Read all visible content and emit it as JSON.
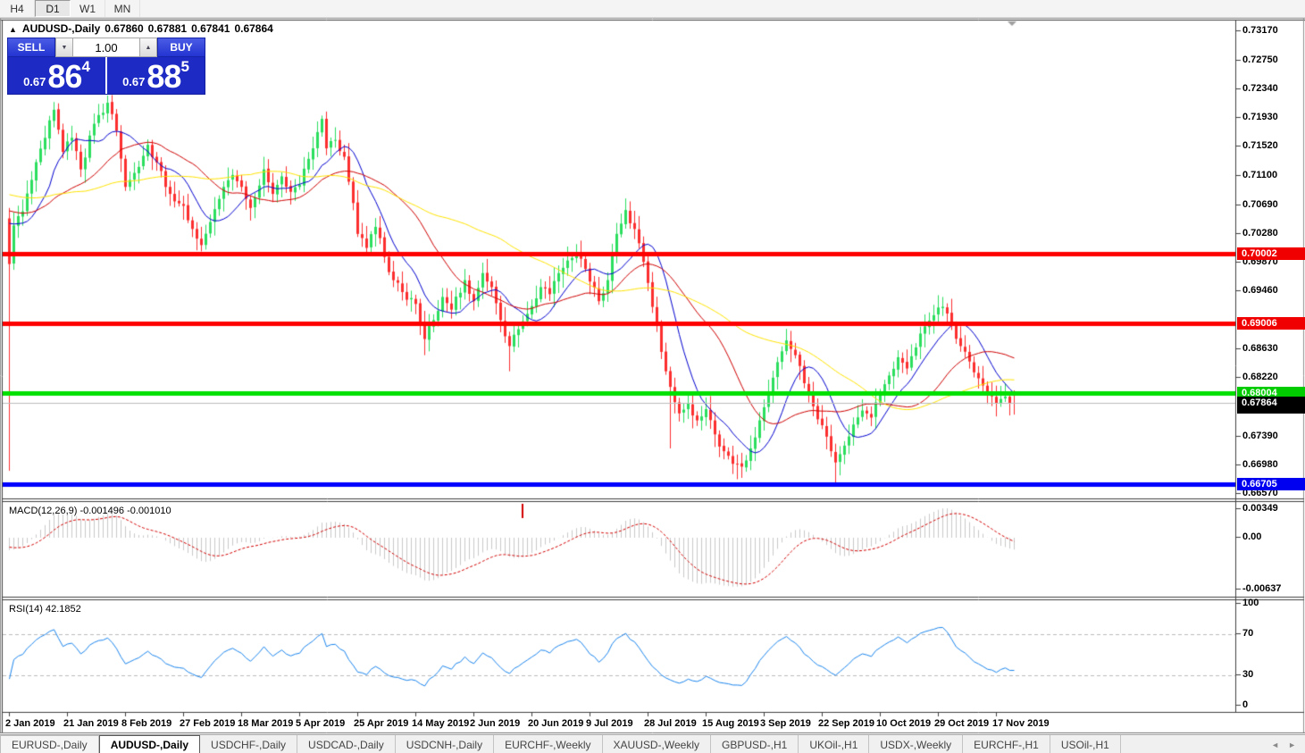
{
  "toolbar": {
    "timeframes": [
      {
        "label": "H4",
        "active": false
      },
      {
        "label": "D1",
        "active": true
      },
      {
        "label": "W1",
        "active": false
      },
      {
        "label": "MN",
        "active": false
      }
    ]
  },
  "header": {
    "symbol": "AUDUSD-,Daily",
    "open": "0.67860",
    "high": "0.67881",
    "low": "0.67841",
    "close": "0.67864"
  },
  "trade_panel": {
    "sell_label": "SELL",
    "buy_label": "BUY",
    "volume": "1.00",
    "sell_price": {
      "prefix": "0.67",
      "big": "86",
      "pip": "4"
    },
    "buy_price": {
      "prefix": "0.67",
      "big": "88",
      "pip": "5"
    }
  },
  "indicators": {
    "macd": {
      "display": "MACD(12,26,9) -0.001496 -0.001010"
    },
    "rsi": {
      "display": "RSI(14) 42.1852"
    }
  },
  "tabs": {
    "scroll_left": "◄",
    "scroll_right": "►",
    "items": [
      {
        "label": "EURUSD-,Daily",
        "active": false
      },
      {
        "label": "AUDUSD-,Daily",
        "active": true
      },
      {
        "label": "USDCHF-,Daily",
        "active": false
      },
      {
        "label": "USDCAD-,Daily",
        "active": false
      },
      {
        "label": "USDCNH-,Daily",
        "active": false
      },
      {
        "label": "EURCHF-,Weekly",
        "active": false
      },
      {
        "label": "XAUUSD-,Weekly",
        "active": false
      },
      {
        "label": "GBPUSD-,H1",
        "active": false
      },
      {
        "label": "UKOil-,H1",
        "active": false
      },
      {
        "label": "USDX-,Weekly",
        "active": false
      },
      {
        "label": "EURCHF-,H1",
        "active": false
      },
      {
        "label": "USOil-,H1",
        "active": false
      }
    ]
  },
  "chart_data": {
    "type": "candlestick",
    "symbol": "AUDUSD",
    "timeframe": "Daily",
    "days": 226,
    "candle_up": "#2BDE5E",
    "candle_down": "#FC2E2E",
    "y_ticks": [
      "0.73170",
      "0.72750",
      "0.72340",
      "0.71930",
      "0.71520",
      "0.71100",
      "0.70690",
      "0.70280",
      "0.69870",
      "0.69460",
      "0.68630",
      "0.68220",
      "0.67390",
      "0.66980",
      "0.66570"
    ],
    "x_labels": [
      {
        "text": "2 Jan 2019",
        "day": 0
      },
      {
        "text": "21 Jan 2019",
        "day": 13
      },
      {
        "text": "8 Feb 2019",
        "day": 26
      },
      {
        "text": "27 Feb 2019",
        "day": 39
      },
      {
        "text": "18 Mar 2019",
        "day": 52
      },
      {
        "text": "5 Apr 2019",
        "day": 65
      },
      {
        "text": "25 Apr 2019",
        "day": 78
      },
      {
        "text": "14 May 2019",
        "day": 91
      },
      {
        "text": "2 Jun 2019",
        "day": 104
      },
      {
        "text": "20 Jun 2019",
        "day": 117
      },
      {
        "text": "9 Jul 2019",
        "day": 130
      },
      {
        "text": "28 Jul 2019",
        "day": 143
      },
      {
        "text": "15 Aug 2019",
        "day": 156
      },
      {
        "text": "3 Sep 2019",
        "day": 169
      },
      {
        "text": "22 Sep 2019",
        "day": 182
      },
      {
        "text": "10 Oct 2019",
        "day": 195
      },
      {
        "text": "29 Oct 2019",
        "day": 208
      },
      {
        "text": "17 Nov 2019",
        "day": 221
      }
    ],
    "hlines": [
      {
        "price": 0.70002,
        "label": "0.70002",
        "line_color": "#FF0000",
        "width": 5,
        "tag_color": "#F00000"
      },
      {
        "price": 0.69006,
        "label": "0.69006",
        "line_color": "#FF0000",
        "width": 5,
        "tag_color": "#F00000"
      },
      {
        "price": 0.68004,
        "label": "0.68004",
        "line_color": "#00E000",
        "width": 5,
        "tag_color": "#00CC00"
      },
      {
        "price": 0.67864,
        "label": "0.67864",
        "line_color": "#BDBDBD",
        "width": 1,
        "tag_color": "#000000",
        "current": true
      },
      {
        "price": 0.66705,
        "label": "0.66705",
        "line_color": "#0000FF",
        "width": 5,
        "tag_color": "#0000F0"
      }
    ],
    "moving_averages": [
      {
        "period": 10,
        "color": "#0000D0"
      },
      {
        "period": 25,
        "color": "#D00000"
      },
      {
        "period": 55,
        "color": "#FFE400"
      }
    ],
    "anchors": [
      [
        0,
        0.6985
      ],
      [
        1,
        0.704
      ],
      [
        3,
        0.706
      ],
      [
        5,
        0.7105
      ],
      [
        8,
        0.7165
      ],
      [
        10,
        0.7205
      ],
      [
        12,
        0.7145
      ],
      [
        14,
        0.7165
      ],
      [
        16,
        0.712
      ],
      [
        19,
        0.7185
      ],
      [
        22,
        0.7215
      ],
      [
        24,
        0.7175
      ],
      [
        26,
        0.7095
      ],
      [
        28,
        0.7115
      ],
      [
        31,
        0.7155
      ],
      [
        33,
        0.713
      ],
      [
        36,
        0.7085
      ],
      [
        39,
        0.7068
      ],
      [
        41,
        0.7035
      ],
      [
        43,
        0.7012
      ],
      [
        45,
        0.7045
      ],
      [
        48,
        0.7095
      ],
      [
        50,
        0.7112
      ],
      [
        52,
        0.7095
      ],
      [
        54,
        0.7065
      ],
      [
        57,
        0.712
      ],
      [
        59,
        0.7085
      ],
      [
        61,
        0.711
      ],
      [
        63,
        0.7088
      ],
      [
        65,
        0.7098
      ],
      [
        67,
        0.7135
      ],
      [
        70,
        0.7192
      ],
      [
        71,
        0.715
      ],
      [
        73,
        0.7162
      ],
      [
        75,
        0.7138
      ],
      [
        77,
        0.7072
      ],
      [
        78,
        0.7028
      ],
      [
        80,
        0.7008
      ],
      [
        82,
        0.7038
      ],
      [
        84,
        0.6995
      ],
      [
        86,
        0.6962
      ],
      [
        88,
        0.6945
      ],
      [
        91,
        0.6928
      ],
      [
        93,
        0.6878
      ],
      [
        95,
        0.6905
      ],
      [
        97,
        0.6938
      ],
      [
        99,
        0.692
      ],
      [
        102,
        0.6962
      ],
      [
        104,
        0.6932
      ],
      [
        106,
        0.6972
      ],
      [
        108,
        0.6952
      ],
      [
        110,
        0.6905
      ],
      [
        112,
        0.6868
      ],
      [
        114,
        0.6892
      ],
      [
        117,
        0.6925
      ],
      [
        119,
        0.6952
      ],
      [
        121,
        0.6942
      ],
      [
        123,
        0.6972
      ],
      [
        125,
        0.699
      ],
      [
        127,
        0.7
      ],
      [
        129,
        0.6978
      ],
      [
        130,
        0.696
      ],
      [
        132,
        0.6932
      ],
      [
        134,
        0.6962
      ],
      [
        136,
        0.7028
      ],
      [
        138,
        0.7062
      ],
      [
        140,
        0.7035
      ],
      [
        142,
        0.6988
      ],
      [
        143,
        0.6958
      ],
      [
        145,
        0.6898
      ],
      [
        147,
        0.6832
      ],
      [
        149,
        0.6788
      ],
      [
        150,
        0.6772
      ],
      [
        152,
        0.6786
      ],
      [
        154,
        0.6762
      ],
      [
        156,
        0.6778
      ],
      [
        158,
        0.6742
      ],
      [
        160,
        0.6718
      ],
      [
        162,
        0.67
      ],
      [
        164,
        0.6696
      ],
      [
        166,
        0.6722
      ],
      [
        168,
        0.6762
      ],
      [
        170,
        0.6802
      ],
      [
        172,
        0.6845
      ],
      [
        174,
        0.6876
      ],
      [
        176,
        0.6855
      ],
      [
        178,
        0.6815
      ],
      [
        180,
        0.6782
      ],
      [
        182,
        0.6755
      ],
      [
        184,
        0.6718
      ],
      [
        185,
        0.6702
      ],
      [
        187,
        0.6726
      ],
      [
        189,
        0.6756
      ],
      [
        191,
        0.6776
      ],
      [
        193,
        0.6766
      ],
      [
        195,
        0.68
      ],
      [
        197,
        0.6826
      ],
      [
        199,
        0.6852
      ],
      [
        201,
        0.6836
      ],
      [
        203,
        0.6866
      ],
      [
        205,
        0.6896
      ],
      [
        207,
        0.6912
      ],
      [
        209,
        0.6924
      ],
      [
        211,
        0.6898
      ],
      [
        213,
        0.6868
      ],
      [
        215,
        0.6846
      ],
      [
        217,
        0.6822
      ],
      [
        219,
        0.68
      ],
      [
        221,
        0.6786
      ],
      [
        223,
        0.6796
      ],
      [
        225,
        0.67864
      ]
    ],
    "wick_overrides": {
      "0": {
        "o": 0.705,
        "h": 0.7065,
        "l": 0.669
      },
      "43": {
        "l": 0.7003
      },
      "93": {
        "l": 0.6855
      },
      "112": {
        "l": 0.6832
      },
      "148": {
        "l": 0.6722
      },
      "163": {
        "l": 0.6678
      },
      "185": {
        "l": 0.66705
      },
      "209": {
        "h": 0.6938
      }
    },
    "macd": {
      "fast": 12,
      "slow": 26,
      "signal": 9,
      "marker_day": 115,
      "axis": [
        {
          "text": "0.00349",
          "v": 0.00349
        },
        {
          "text": "0.00",
          "v": 0
        },
        {
          "text": "-0.00637",
          "v": -0.00637
        }
      ],
      "histogram_color": "#c9c9c9",
      "signal_color": "#D40000"
    },
    "rsi": {
      "period": 14,
      "levels": [
        70,
        30
      ],
      "color": "#1C86EE",
      "axis": [
        100,
        70,
        30,
        0
      ]
    }
  }
}
